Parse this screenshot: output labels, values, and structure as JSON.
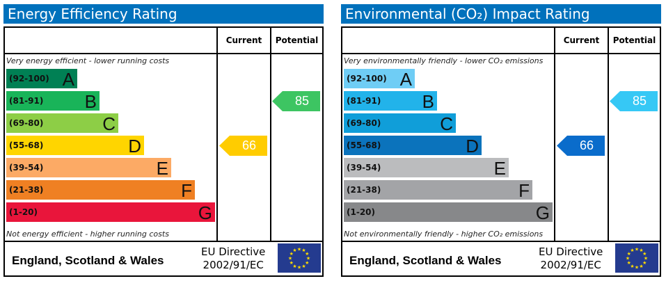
{
  "chart_data": [
    {
      "type": "bar",
      "title": "Energy Efficiency Rating",
      "column_headers": [
        "Current",
        "Potential"
      ],
      "top_caption": "Very energy efficient - lower running costs",
      "bottom_caption": "Not energy efficient - higher running costs",
      "bands": [
        {
          "range": "(92-100)",
          "letter": "A",
          "color": "#008054"
        },
        {
          "range": "(81-91)",
          "letter": "B",
          "color": "#19b459"
        },
        {
          "range": "(69-80)",
          "letter": "C",
          "color": "#8dce46"
        },
        {
          "range": "(55-68)",
          "letter": "D",
          "color": "#ffd500"
        },
        {
          "range": "(39-54)",
          "letter": "E",
          "color": "#fcaa65"
        },
        {
          "range": "(21-38)",
          "letter": "F",
          "color": "#ef8023"
        },
        {
          "range": "(1-20)",
          "letter": "G",
          "color": "#e9153b"
        }
      ],
      "current": {
        "value": 66,
        "band": "D",
        "color": "#ffcc00"
      },
      "potential": {
        "value": 85,
        "band": "B",
        "color": "#3dc562"
      },
      "footer": {
        "region": "England, Scotland & Wales",
        "directive_line1": "EU Directive",
        "directive_line2": "2002/91/EC"
      }
    },
    {
      "type": "bar",
      "title": "Environmental (CO₂) Impact Rating",
      "column_headers": [
        "Current",
        "Potential"
      ],
      "top_caption": "Very environmentally friendly - lower CO₂ emissions",
      "bottom_caption": "Not environmentally friendly - higher CO₂ emissions",
      "bands": [
        {
          "range": "(92-100)",
          "letter": "A",
          "color": "#6fcdf5"
        },
        {
          "range": "(81-91)",
          "letter": "B",
          "color": "#22b3ea"
        },
        {
          "range": "(69-80)",
          "letter": "C",
          "color": "#109ed9"
        },
        {
          "range": "(55-68)",
          "letter": "D",
          "color": "#0b73bc"
        },
        {
          "range": "(39-54)",
          "letter": "E",
          "color": "#bbbcbe"
        },
        {
          "range": "(21-38)",
          "letter": "F",
          "color": "#a3a4a7"
        },
        {
          "range": "(1-20)",
          "letter": "G",
          "color": "#87888a"
        }
      ],
      "current": {
        "value": 66,
        "band": "D",
        "color": "#0a6ccb"
      },
      "potential": {
        "value": 85,
        "band": "B",
        "color": "#36c8f5"
      },
      "footer": {
        "region": "England, Scotland & Wales",
        "directive_line1": "EU Directive",
        "directive_line2": "2002/91/EC"
      }
    }
  ]
}
